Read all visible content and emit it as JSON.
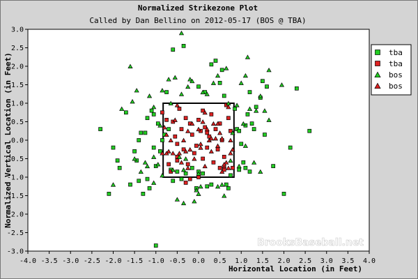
{
  "chart_data": {
    "type": "scatter",
    "title": "Normalized Strikezone Plot",
    "subtitle": "Called by Dan Bellino on 2012-05-17 (BOS @ TBA)",
    "xlabel": "Horizontal Location (in Feet)",
    "ylabel": "Normalized Vertical Location (in Feet)",
    "xlim": [
      -4.0,
      4.0
    ],
    "ylim": [
      -3.0,
      3.0
    ],
    "x_ticks": [
      "-4.0",
      "-3.5",
      "-3.0",
      "-2.5",
      "-2.0",
      "-1.5",
      "-1.0",
      "-0.5",
      "0.0",
      "0.5",
      "1.0",
      "1.5",
      "2.0",
      "2.5",
      "3.0",
      "3.5",
      "4.0"
    ],
    "y_ticks": [
      "3.0",
      "2.5",
      "2.0",
      "1.5",
      "1.0",
      "0.5",
      "0.0",
      "-0.5",
      "-1.0",
      "-1.5",
      "-2.0",
      "-2.5",
      "-3.0"
    ],
    "grid": false,
    "legend_position": "right",
    "strike_zone": {
      "x": [
        -0.83,
        0.83
      ],
      "y": [
        -1.0,
        1.0
      ]
    },
    "watermark": "BrooksBaseball.net",
    "series": [
      {
        "name": "tba",
        "marker": "square",
        "color": "#22cc22",
        "points": [
          [
            -2.3,
            0.3
          ],
          [
            -2.0,
            -0.2
          ],
          [
            -2.1,
            -1.45
          ],
          [
            -1.9,
            -0.55
          ],
          [
            -1.85,
            -0.75
          ],
          [
            -1.6,
            -1.2
          ],
          [
            -1.5,
            -0.3
          ],
          [
            -1.45,
            -0.55
          ],
          [
            -1.4,
            0.0
          ],
          [
            -1.35,
            0.2
          ],
          [
            -1.3,
            -1.45
          ],
          [
            -1.25,
            0.2
          ],
          [
            -1.2,
            -1.05
          ],
          [
            -1.15,
            -1.3
          ],
          [
            -1.1,
            0.8
          ],
          [
            -1.05,
            0.7
          ],
          [
            -1.0,
            -0.7
          ],
          [
            -1.05,
            -0.2
          ],
          [
            -1.2,
            0.6
          ],
          [
            -0.9,
            -0.3
          ],
          [
            -0.85,
            0.0
          ],
          [
            -0.75,
            1.3
          ],
          [
            -0.7,
            0.3
          ],
          [
            -0.65,
            -0.8
          ],
          [
            -0.6,
            -1.1
          ],
          [
            -0.5,
            -0.85
          ],
          [
            -0.4,
            -1.05
          ],
          [
            -0.3,
            -0.9
          ],
          [
            -0.15,
            -0.75
          ],
          [
            0.0,
            -0.85
          ],
          [
            0.1,
            -0.9
          ],
          [
            0.2,
            -1.25
          ],
          [
            0.3,
            2.05
          ],
          [
            0.4,
            2.15
          ],
          [
            0.55,
            1.9
          ],
          [
            0.6,
            1.2
          ],
          [
            0.65,
            -1.2
          ],
          [
            0.7,
            -1.3
          ],
          [
            0.85,
            0.85
          ],
          [
            0.9,
            0.3
          ],
          [
            0.95,
            0.25
          ],
          [
            1.0,
            -0.1
          ],
          [
            1.05,
            -0.6
          ],
          [
            1.1,
            -0.75
          ],
          [
            1.1,
            0.4
          ],
          [
            1.15,
            0.7
          ],
          [
            1.2,
            -0.85
          ],
          [
            1.25,
            0.45
          ],
          [
            1.3,
            0.3
          ],
          [
            1.35,
            0.9
          ],
          [
            1.45,
            1.15
          ],
          [
            1.5,
            1.6
          ],
          [
            1.55,
            0.15
          ],
          [
            1.6,
            1.45
          ],
          [
            1.75,
            -0.7
          ],
          [
            2.0,
            -1.45
          ],
          [
            2.3,
            1.4
          ],
          [
            2.6,
            0.25
          ],
          [
            2.15,
            -0.2
          ],
          [
            -0.6,
            2.45
          ],
          [
            0.0,
            1.45
          ],
          [
            0.15,
            1.3
          ],
          [
            0.95,
            -0.8
          ],
          [
            1.2,
            1.3
          ],
          [
            -1.4,
            -1.1
          ],
          [
            -1.7,
            0.75
          ],
          [
            0.75,
            -0.95
          ],
          [
            -0.95,
            0.45
          ],
          [
            -0.8,
            0.15
          ],
          [
            0.3,
            -1.2
          ],
          [
            -1.0,
            -2.85
          ],
          [
            -0.05,
            -1.3
          ],
          [
            0.5,
            1.55
          ],
          [
            -0.35,
            2.55
          ]
        ]
      },
      {
        "name": "tba",
        "marker": "square",
        "color": "#dd2222",
        "points": [
          [
            -0.6,
            0.5
          ],
          [
            -0.55,
            0.1
          ],
          [
            -0.5,
            -0.1
          ],
          [
            -0.5,
            -0.45
          ],
          [
            -0.4,
            0.3
          ],
          [
            -0.35,
            -0.25
          ],
          [
            -0.3,
            0.6
          ],
          [
            -0.25,
            -0.65
          ],
          [
            -0.2,
            0.45
          ],
          [
            -0.15,
            0.15
          ],
          [
            -0.1,
            -0.35
          ],
          [
            -0.05,
            -0.15
          ],
          [
            0.0,
            0.55
          ],
          [
            0.05,
            0.25
          ],
          [
            0.1,
            -0.5
          ],
          [
            0.15,
            0.35
          ],
          [
            0.2,
            -0.2
          ],
          [
            0.25,
            0.1
          ],
          [
            0.3,
            0.7
          ],
          [
            0.35,
            -0.6
          ],
          [
            0.4,
            0.3
          ],
          [
            0.45,
            -0.25
          ],
          [
            0.5,
            0.45
          ],
          [
            0.55,
            0.0
          ],
          [
            0.6,
            -0.45
          ],
          [
            0.65,
            0.95
          ],
          [
            0.7,
            0.6
          ],
          [
            -0.7,
            -0.65
          ],
          [
            -0.65,
            -0.85
          ],
          [
            -0.45,
            0.85
          ],
          [
            -0.2,
            -1.05
          ],
          [
            0.1,
            0.8
          ],
          [
            -0.75,
            0.55
          ],
          [
            0.5,
            -0.75
          ],
          [
            0.6,
            -0.8
          ],
          [
            0.75,
            0.25
          ],
          [
            -0.3,
            -1.15
          ],
          [
            0.0,
            -1.0
          ],
          [
            0.8,
            -0.75
          ],
          [
            -0.85,
            0.75
          ],
          [
            -0.5,
            -0.55
          ],
          [
            0.2,
            0.2
          ]
        ]
      },
      {
        "name": "bos",
        "marker": "triangle",
        "color": "#22cc22",
        "points": [
          [
            -2.0,
            -1.2
          ],
          [
            -1.8,
            0.85
          ],
          [
            -1.55,
            1.05
          ],
          [
            -1.45,
            1.35
          ],
          [
            -1.35,
            -0.85
          ],
          [
            -1.25,
            -0.6
          ],
          [
            -1.15,
            1.2
          ],
          [
            -1.05,
            0.9
          ],
          [
            -1.05,
            -1.15
          ],
          [
            -0.95,
            -0.65
          ],
          [
            -0.85,
            -0.95
          ],
          [
            -0.7,
            1.65
          ],
          [
            -0.6,
            -0.8
          ],
          [
            -0.55,
            1.7
          ],
          [
            -0.45,
            -0.45
          ],
          [
            -0.4,
            1.25
          ],
          [
            -0.35,
            -1.7
          ],
          [
            -0.3,
            -0.5
          ],
          [
            -0.25,
            1.45
          ],
          [
            -0.2,
            1.65
          ],
          [
            -0.15,
            1.6
          ],
          [
            -0.05,
            -1.35
          ],
          [
            0.0,
            -1.45
          ],
          [
            0.05,
            -1.25
          ],
          [
            0.1,
            1.3
          ],
          [
            0.2,
            1.25
          ],
          [
            0.35,
            1.55
          ],
          [
            0.45,
            -1.25
          ],
          [
            0.55,
            -1.2
          ],
          [
            0.6,
            -1.5
          ],
          [
            0.65,
            1.95
          ],
          [
            0.75,
            -0.55
          ],
          [
            0.8,
            0.2
          ],
          [
            0.95,
            -0.7
          ],
          [
            1.05,
            0.45
          ],
          [
            1.1,
            1.75
          ],
          [
            1.15,
            2.25
          ],
          [
            1.2,
            0.85
          ],
          [
            1.3,
            -0.6
          ],
          [
            1.35,
            0.8
          ],
          [
            1.45,
            -0.85
          ],
          [
            1.55,
            0.8
          ],
          [
            1.65,
            0.55
          ],
          [
            1.65,
            1.9
          ],
          [
            1.95,
            1.5
          ],
          [
            -1.6,
            2.0
          ],
          [
            -0.4,
            2.9
          ],
          [
            -0.1,
            -1.65
          ],
          [
            -0.5,
            -1.6
          ],
          [
            -0.35,
            -0.8
          ],
          [
            0.9,
            0.95
          ],
          [
            1.1,
            -0.15
          ],
          [
            -1.5,
            -0.5
          ],
          [
            -1.05,
            -0.45
          ],
          [
            -0.9,
            0.4
          ],
          [
            0.45,
            1.75
          ],
          [
            1.0,
            1.55
          ],
          [
            -0.65,
            1.0
          ],
          [
            0.7,
            1.0
          ],
          [
            1.45,
            1.2
          ],
          [
            -0.85,
            1.35
          ],
          [
            -1.2,
            -0.7
          ],
          [
            0.0,
            -0.9
          ]
        ]
      },
      {
        "name": "bos",
        "marker": "triangle",
        "color": "#dd2222",
        "points": [
          [
            -0.8,
            0.35
          ],
          [
            -0.75,
            0.15
          ],
          [
            -0.7,
            -0.3
          ],
          [
            -0.65,
            0.0
          ],
          [
            -0.6,
            -0.35
          ],
          [
            -0.55,
            0.55
          ],
          [
            -0.45,
            -0.35
          ],
          [
            -0.4,
            -0.6
          ],
          [
            -0.35,
            0.0
          ],
          [
            -0.3,
            -0.3
          ],
          [
            -0.25,
            0.25
          ],
          [
            -0.2,
            -0.25
          ],
          [
            -0.15,
            0.45
          ],
          [
            -0.1,
            -0.5
          ],
          [
            0.0,
            0.3
          ],
          [
            0.05,
            -0.1
          ],
          [
            0.1,
            0.5
          ],
          [
            0.15,
            -0.7
          ],
          [
            0.2,
            0.3
          ],
          [
            0.25,
            0.0
          ],
          [
            0.3,
            -0.3
          ],
          [
            0.35,
            0.45
          ],
          [
            0.4,
            0.05
          ],
          [
            0.45,
            -0.15
          ],
          [
            0.5,
            0.2
          ],
          [
            0.55,
            -0.85
          ],
          [
            0.6,
            -0.7
          ],
          [
            0.65,
            -0.6
          ],
          [
            0.7,
            0.9
          ],
          [
            0.75,
            -0.35
          ],
          [
            -0.85,
            -0.35
          ],
          [
            -0.5,
            0.95
          ],
          [
            -0.25,
            -0.75
          ],
          [
            0.15,
            0.75
          ],
          [
            0.55,
            0.05
          ],
          [
            0.6,
            -0.65
          ],
          [
            0.7,
            -0.75
          ],
          [
            0.75,
            0.0
          ],
          [
            0.8,
            -0.25
          ],
          [
            -0.75,
            -0.35
          ],
          [
            0.05,
            -0.2
          ],
          [
            0.3,
            0.05
          ],
          [
            0.45,
            0.45
          ]
        ]
      }
    ]
  }
}
